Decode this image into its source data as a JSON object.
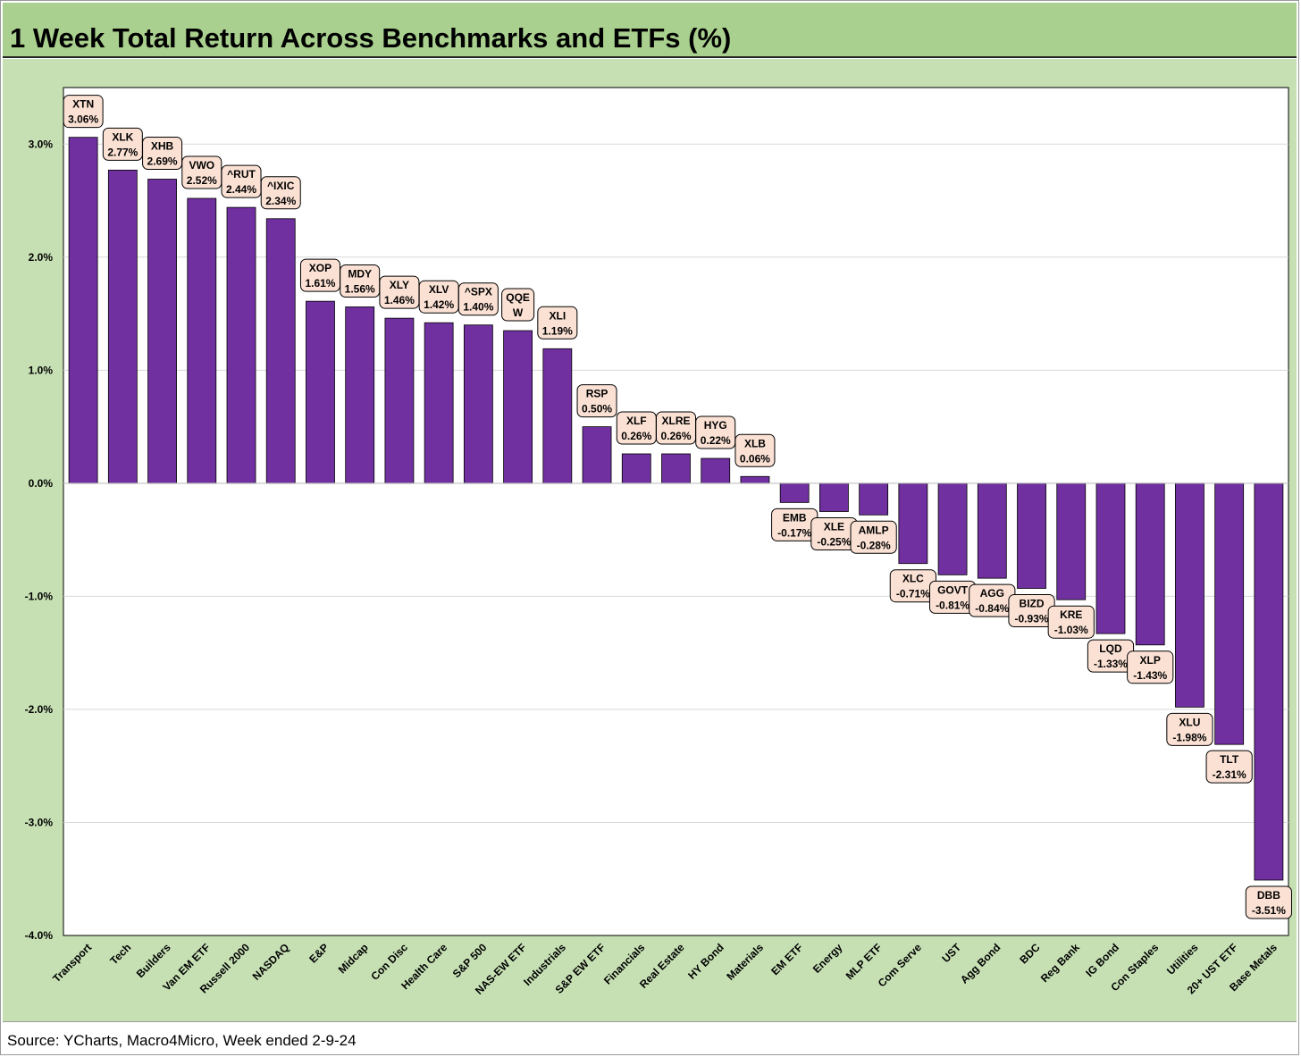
{
  "title": "1 Week Total Return Across Benchmarks and ETFs (%)",
  "source": "Source: YCharts, Macro4Micro, Week ended 2-9-24",
  "colors": {
    "bar": "#7030a0",
    "background": "#c6e0b4",
    "title_bg": "#a9d08e",
    "label_bg": "#fbe1d4"
  },
  "chart_data": {
    "type": "bar",
    "title": "1 Week Total Return Across Benchmarks and ETFs (%)",
    "xlabel": "",
    "ylabel": "",
    "ylim": [
      -4.0,
      3.5
    ],
    "yticks": [
      3.0,
      2.0,
      1.0,
      0.0,
      -1.0,
      -2.0,
      -3.0,
      -4.0
    ],
    "ytick_labels": [
      "3.0%",
      "2.0%",
      "1.0%",
      "0.0%",
      "-1.0%",
      "-2.0%",
      "-3.0%",
      "-4.0%"
    ],
    "grid": true,
    "legend": "none",
    "categories": [
      "Transport",
      "Tech",
      "Builders",
      "Van EM ETF",
      "Russell 2000",
      "NASDAQ",
      "E&P",
      "Midcap",
      "Con Disc",
      "Health Care",
      "S&P 500",
      "NAS-EW ETF",
      "Industrials",
      "S&P EW ETF",
      "Financials",
      "Real Estate",
      "HY Bond",
      "Materials",
      "EM ETF",
      "Energy",
      "MLP ETF",
      "Com Serve",
      "UST",
      "Agg Bond",
      "BDC",
      "Reg Bank",
      "IG Bond",
      "Con Staples",
      "Utilities",
      "20+ UST ETF",
      "Base Metals"
    ],
    "tickers": [
      "XTN",
      "XLK",
      "XHB",
      "VWO",
      "^RUT",
      "^IXIC",
      "XOP",
      "MDY",
      "XLY",
      "XLV",
      "^SPX",
      "QQEW",
      "XLI",
      "RSP",
      "XLF",
      "XLRE",
      "HYG",
      "XLB",
      "EMB",
      "XLE",
      "AMLP",
      "XLC",
      "GOVT",
      "AGG",
      "BIZD",
      "KRE",
      "LQD",
      "XLP",
      "XLU",
      "TLT",
      "DBB"
    ],
    "values": [
      3.06,
      2.77,
      2.69,
      2.52,
      2.44,
      2.34,
      1.61,
      1.56,
      1.46,
      1.42,
      1.4,
      1.35,
      1.19,
      0.5,
      0.26,
      0.26,
      0.22,
      0.06,
      -0.17,
      -0.25,
      -0.28,
      -0.71,
      -0.81,
      -0.84,
      -0.93,
      -1.03,
      -1.33,
      -1.43,
      -1.98,
      -2.31,
      -3.51
    ],
    "data_labels": [
      [
        "XTN",
        "3.06%"
      ],
      [
        "XLK",
        "2.77%"
      ],
      [
        "XHB",
        "2.69%"
      ],
      [
        "VWO",
        "2.52%"
      ],
      [
        "^RUT",
        "2.44%"
      ],
      [
        "^IXIC",
        "2.34%"
      ],
      [
        "XOP",
        "1.61%"
      ],
      [
        "MDY",
        "1.56%"
      ],
      [
        "XLY",
        "1.46%"
      ],
      [
        "XLV",
        "1.42%"
      ],
      [
        "^SPX",
        "1.40%"
      ],
      [
        "QQE",
        "W"
      ],
      [
        "XLI",
        "1.19%"
      ],
      [
        "RSP",
        "0.50%"
      ],
      [
        "XLF",
        "0.26%"
      ],
      [
        "XLRE",
        "0.26%"
      ],
      [
        "HYG",
        "0.22%"
      ],
      [
        "XLB",
        "0.06%"
      ],
      [
        "EMB",
        "-0.17%"
      ],
      [
        "XLE",
        "-0.25%"
      ],
      [
        "AMLP",
        "-0.28%"
      ],
      [
        "XLC",
        "-0.71%"
      ],
      [
        "GOVT",
        "-0.81%"
      ],
      [
        "AGG",
        "-0.84%"
      ],
      [
        "BIZD",
        "-0.93%"
      ],
      [
        "KRE",
        "-1.03%"
      ],
      [
        "LQD",
        "-1.33%"
      ],
      [
        "XLP",
        "-1.43%"
      ],
      [
        "XLU",
        "-1.98%"
      ],
      [
        "TLT",
        "-2.31%"
      ],
      [
        "DBB",
        "-3.51%"
      ]
    ]
  }
}
